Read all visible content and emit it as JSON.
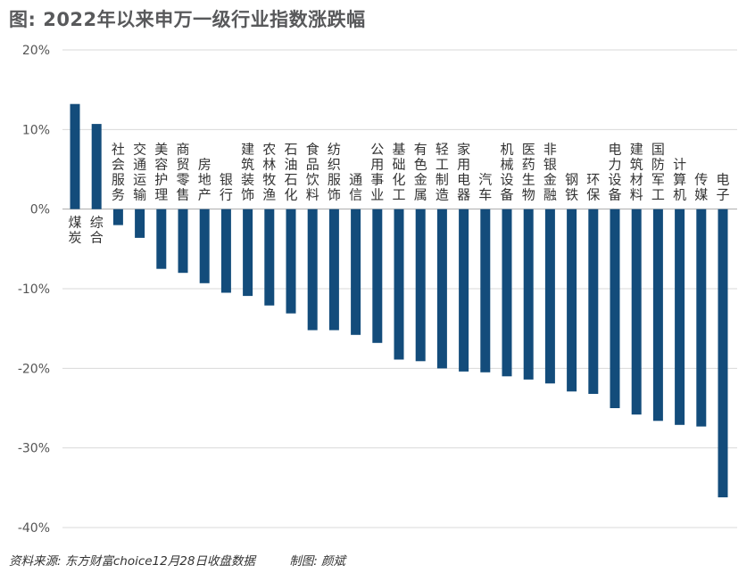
{
  "title": "图: 2022年以来申万一级行业指数涨跌幅",
  "source_note": "资料来源: 东方财富choice12月28日收盘数据",
  "maker_note": "制图: 颜斌",
  "colors": {
    "bar": "#134c7b",
    "grid": "#d9d9d9",
    "axis": "#aaaaaa",
    "title": "#58595b"
  },
  "chart_data": {
    "type": "bar",
    "title": "图: 2022年以来申万一级行业指数涨跌幅",
    "xlabel": "",
    "ylabel": "",
    "ylim": [
      -40,
      20
    ],
    "yticks": [
      20,
      10,
      0,
      -10,
      -20,
      -30,
      -40
    ],
    "ytick_labels": [
      "20%",
      "10%",
      "0%",
      "-10%",
      "-20%",
      "-30%",
      "-40%"
    ],
    "grid": "horizontal",
    "categories": [
      "煤炭",
      "综合",
      "社会服务",
      "交通运输",
      "美容护理",
      "商贸零售",
      "房地产",
      "银行",
      "建筑装饰",
      "农林牧渔",
      "石油石化",
      "食品饮料",
      "纺织服饰",
      "通信",
      "公用事业",
      "基础化工",
      "有色金属",
      "轻工制造",
      "家用电器",
      "汽车",
      "机械设备",
      "医药生物",
      "非银金融",
      "钢铁",
      "环保",
      "电力设备",
      "建筑材料",
      "国防军工",
      "计算机",
      "传媒",
      "电子"
    ],
    "values": [
      13.2,
      10.7,
      -2.0,
      -3.6,
      -7.5,
      -8.0,
      -9.3,
      -10.5,
      -10.9,
      -12.1,
      -13.1,
      -15.2,
      -15.2,
      -15.8,
      -16.8,
      -18.9,
      -19.1,
      -20.0,
      -20.4,
      -20.5,
      -21.0,
      -21.4,
      -21.9,
      -22.9,
      -23.2,
      -25.0,
      -25.8,
      -26.6,
      -27.1,
      -27.3,
      -36.2
    ],
    "unit": "%"
  }
}
